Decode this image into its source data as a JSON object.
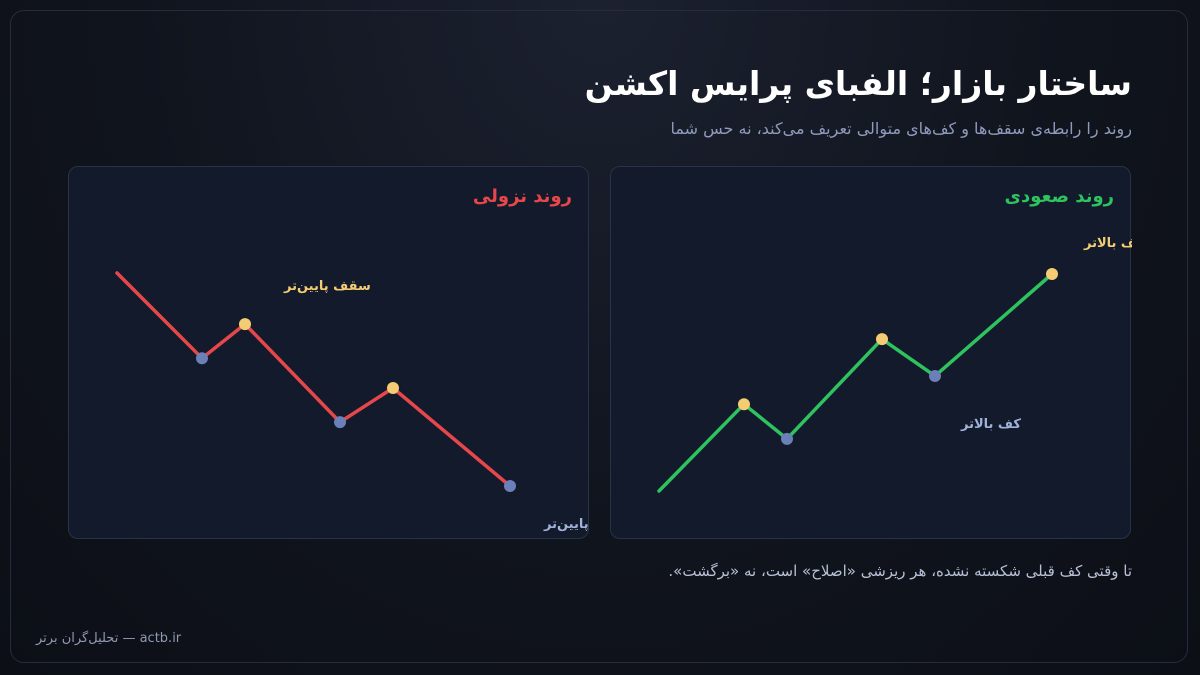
{
  "header": {
    "title": "ساختار بازار؛ الفبای پرایس اکشن",
    "subtitle": "روند را رابطه‌ی سقف‌ها و کف‌های متوالی تعریف می‌کند، نه حس شما"
  },
  "panels": {
    "uptrend": {
      "title": "روند صعودی",
      "high_label": "سقف بالاتر",
      "low_label": "کف بالاتر"
    },
    "downtrend": {
      "title": "روند نزولی",
      "high_label": "سقف پایین‌تر",
      "low_label": "کف پایین‌تر"
    }
  },
  "note": "تا وقتی کف قبلی شکسته نشده، هر ریزشی «اصلاح» است، نه «برگشت».",
  "footer": "actb.ir — تحلیل‌گران برتر",
  "colors": {
    "up": "#2ec35f",
    "down": "#e6474a",
    "high_point": "#f3cc74",
    "low_point": "#6b80b8"
  },
  "chart_data": [
    {
      "type": "line",
      "name": "uptrend",
      "points": [
        {
          "kind": "start",
          "y": 0
        },
        {
          "kind": "high",
          "y": 4
        },
        {
          "kind": "low",
          "y": 2.4
        },
        {
          "kind": "high",
          "y": 7
        },
        {
          "kind": "low",
          "y": 5.3
        },
        {
          "kind": "high",
          "y": 10
        }
      ]
    },
    {
      "type": "line",
      "name": "downtrend",
      "points": [
        {
          "kind": "start",
          "y": 10
        },
        {
          "kind": "low",
          "y": 6
        },
        {
          "kind": "high",
          "y": 7.6
        },
        {
          "kind": "low",
          "y": 3
        },
        {
          "kind": "high",
          "y": 4.6
        },
        {
          "kind": "low",
          "y": 0
        }
      ]
    }
  ]
}
